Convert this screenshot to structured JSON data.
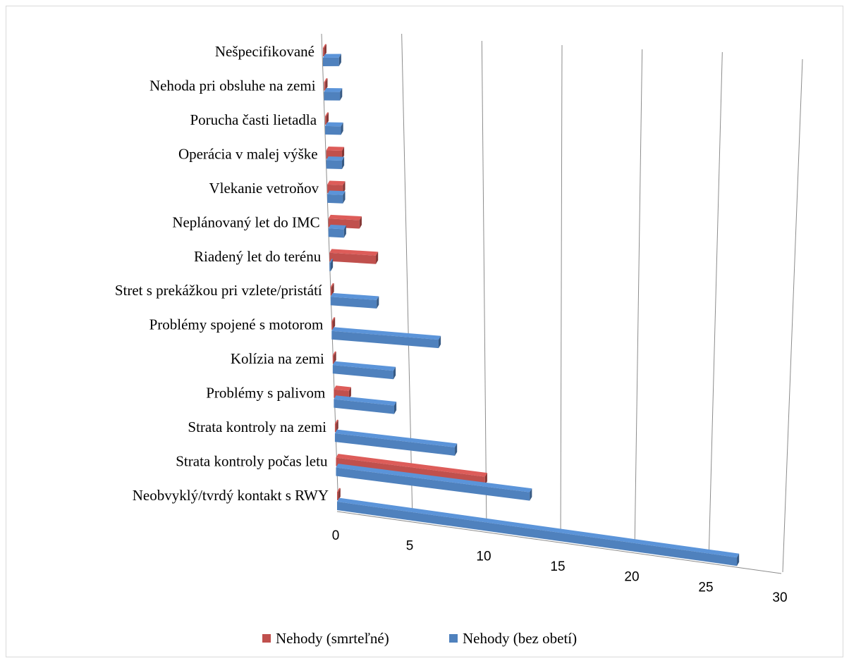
{
  "chart_data": {
    "type": "bar",
    "orientation": "horizontal",
    "style": "3d",
    "categories": [
      "Neobvyklý/tvrdý kontakt s RWY",
      "Strata kontroly počas letu",
      "Strata kontroly na zemi",
      "Problémy s palivom",
      "Kolízia na zemi",
      "Problémy spojené s motorom",
      "Stret s prekážkou pri vzlete/pristátí",
      "Riadený let do terénu",
      "Neplánovaný let do IMC",
      "Vlekanie vetroňov",
      "Operácia v malej výške",
      "Porucha časti lietadla",
      "Nehoda pri obsluhe na zemi",
      "Nešpecifikované"
    ],
    "series": [
      {
        "name": "Nehody (smrteľné)",
        "color": "#c0504d",
        "values": [
          0,
          10,
          0,
          1,
          0,
          0,
          0,
          3,
          2,
          1,
          1,
          0,
          0,
          0
        ]
      },
      {
        "name": "Nehody (bez obetí)",
        "color": "#4f81bd",
        "values": [
          27,
          13,
          8,
          4,
          4,
          7,
          3,
          0,
          1,
          1,
          1,
          1,
          1,
          1
        ]
      }
    ],
    "x_ticks": [
      "0",
      "5",
      "10",
      "15",
      "20",
      "25",
      "30"
    ],
    "xlim": [
      0,
      30
    ],
    "grid": true,
    "legend_position": "bottom"
  }
}
